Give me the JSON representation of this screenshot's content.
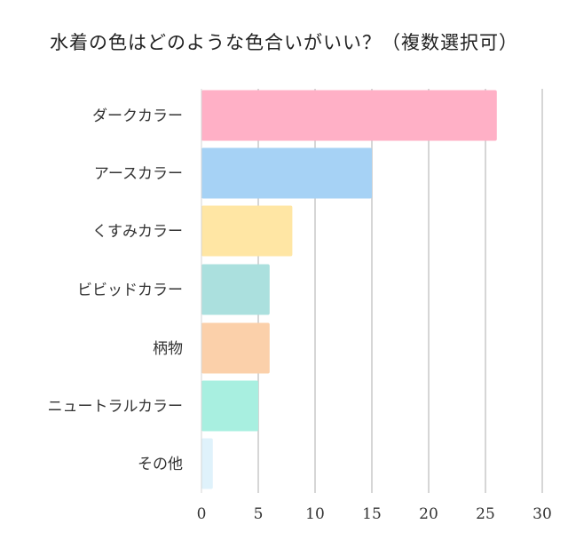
{
  "chart_data": {
    "type": "bar",
    "orientation": "horizontal",
    "title": "水着の色はどのような色合いがいい？（複数選択可）",
    "categories": [
      "ダークカラー",
      "アースカラー",
      "くすみカラー",
      "ビビッドカラー",
      "柄物",
      "ニュートラルカラー",
      "その他"
    ],
    "values": [
      26,
      15,
      8,
      6,
      6,
      5,
      1
    ],
    "colors": [
      "#ffb0c6",
      "#a6d2f5",
      "#ffe6a4",
      "#abe0de",
      "#fbd0aa",
      "#a8efe0",
      "#dff2fb"
    ],
    "xlim": [
      0,
      30
    ],
    "xticks": [
      "0",
      "5",
      "10",
      "15",
      "20",
      "25",
      "30"
    ],
    "xlabel": "",
    "ylabel": "",
    "grid": true,
    "legend": "none"
  }
}
